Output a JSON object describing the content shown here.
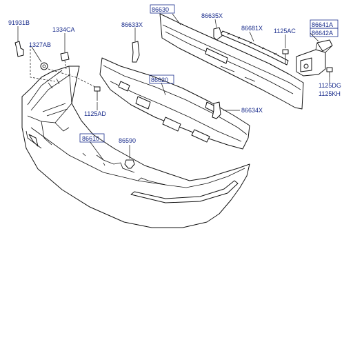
{
  "parts": {
    "p91931B": "91931B",
    "p1334CA": "1334CA",
    "p1327AB": "1327AB",
    "p86633X": "86633X",
    "p86630": "86630",
    "p86635X": "86635X",
    "p86681X": "86681X",
    "p1125AC": "1125AC",
    "p86641A": "86641A",
    "p86642A": "86642A",
    "p86620": "86620",
    "p1125AD": "1125AD",
    "p86634X": "86634X",
    "p1125DG": "1125DG",
    "p1125KH": "1125KH",
    "p86610": "86610",
    "p86590": "86590"
  }
}
